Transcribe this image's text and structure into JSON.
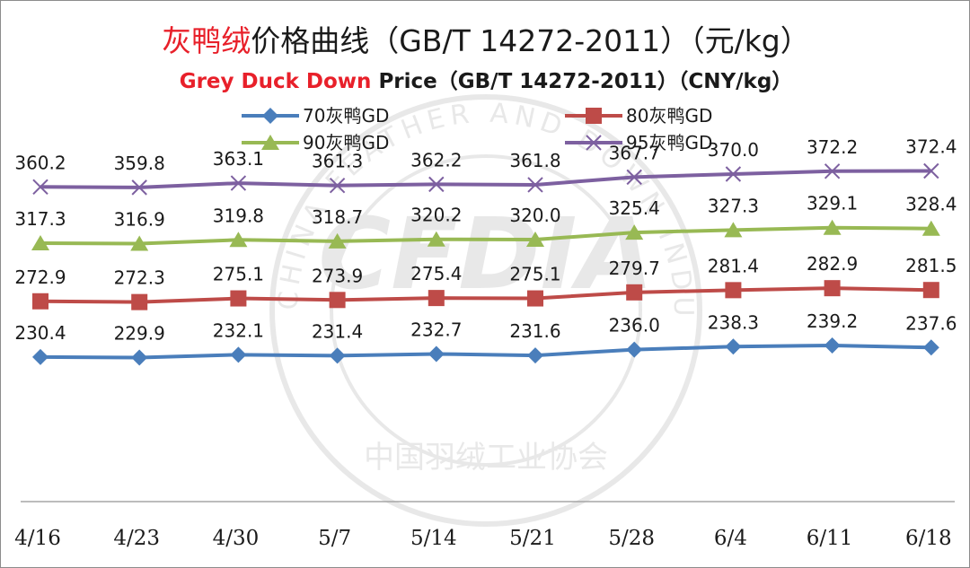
{
  "title": {
    "cn_accent": "灰鸭绒",
    "cn_rest": "价格曲线（GB/T 14272-2011）（元/kg）",
    "en_accent": "Grey Duck Down",
    "en_rest": " Price（GB/T 14272-2011）（CNY/kg）"
  },
  "colors": {
    "accent_red": "#e8202a",
    "s70": "#4a7ebb",
    "s80": "#be4b48",
    "s90": "#98b954",
    "s95": "#7d60a0",
    "axis": "#a6a6a6"
  },
  "watermark": {
    "ring_text": "CHINA FEATHER AND DOWN INDUSTRIAL ASSOCIATION",
    "center_text": "CFDIA",
    "bottom_text": "中国羽绒工业协会"
  },
  "chart_data": {
    "type": "line",
    "categories": [
      "4/16",
      "4/23",
      "4/30",
      "5/7",
      "5/14",
      "5/21",
      "5/28",
      "6/4",
      "6/11",
      "6/18"
    ],
    "grid": false,
    "legend_position": "top",
    "series": [
      {
        "name": "70灰鸭GD",
        "marker": "diamond",
        "color": "#4a7ebb",
        "values": [
          230.4,
          229.9,
          232.1,
          231.4,
          232.7,
          231.6,
          236.0,
          238.3,
          239.2,
          237.6
        ]
      },
      {
        "name": "80灰鸭GD",
        "marker": "square",
        "color": "#be4b48",
        "values": [
          272.9,
          272.3,
          275.1,
          273.9,
          275.4,
          275.1,
          279.7,
          281.4,
          282.9,
          281.5
        ]
      },
      {
        "name": "90灰鸭GD",
        "marker": "triangle",
        "color": "#98b954",
        "values": [
          317.3,
          316.9,
          319.8,
          318.7,
          320.2,
          320.0,
          325.4,
          327.3,
          329.1,
          328.4
        ]
      },
      {
        "name": "95灰鸭GD",
        "marker": "x",
        "color": "#7d60a0",
        "values": [
          360.2,
          359.8,
          363.1,
          361.3,
          362.2,
          361.8,
          367.7,
          370.0,
          372.2,
          372.4
        ]
      }
    ],
    "xlabel": "",
    "ylabel": "",
    "ylim": [
      120,
      420
    ]
  }
}
